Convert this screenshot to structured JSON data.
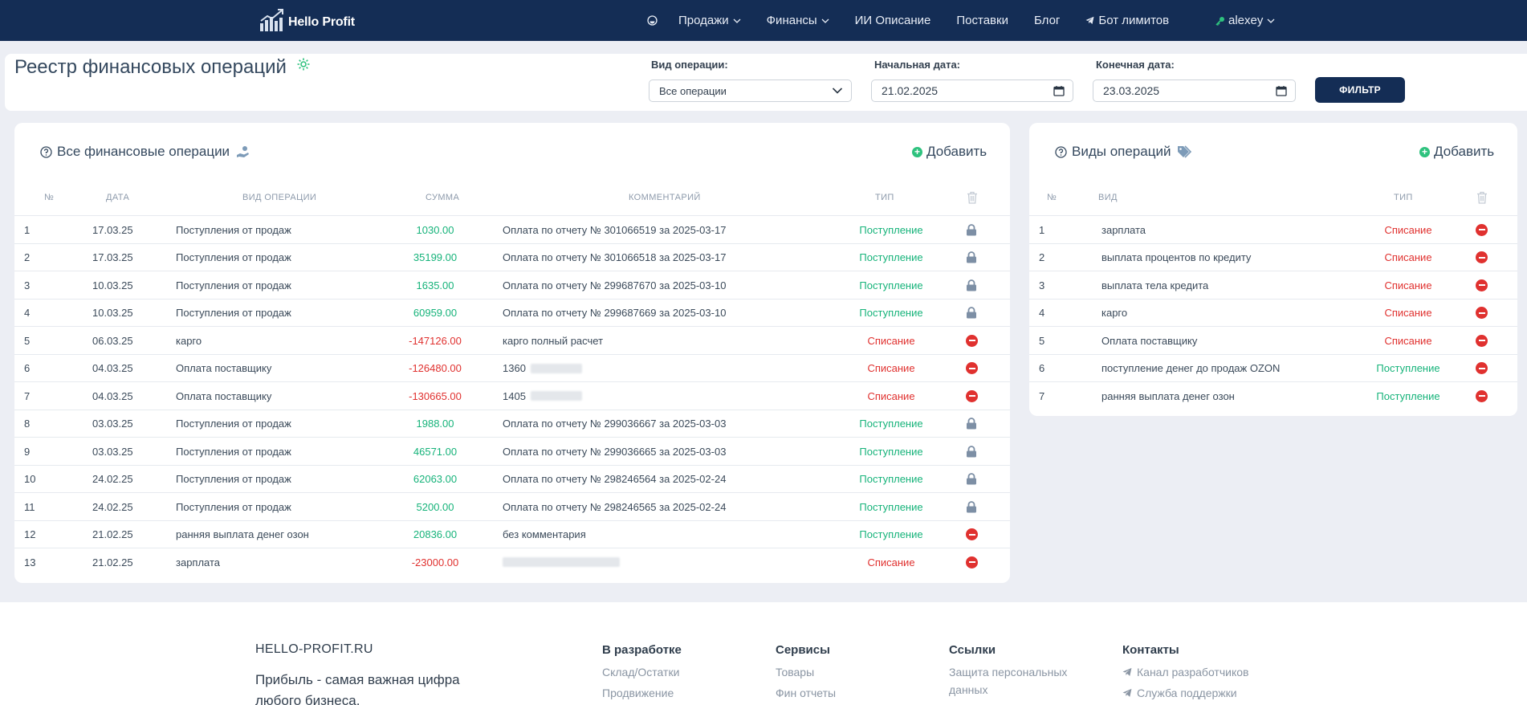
{
  "navbar": {
    "brand": "Hello Profit",
    "items": [
      {
        "label": "Продажи",
        "dropdown": true
      },
      {
        "label": "Финансы",
        "dropdown": true
      },
      {
        "label": "ИИ Описание",
        "dropdown": false
      },
      {
        "label": "Поставки",
        "dropdown": false
      },
      {
        "label": "Блог",
        "dropdown": false
      },
      {
        "label": "Бот лимитов",
        "dropdown": false
      }
    ],
    "user": "alexey"
  },
  "filter": {
    "title": "Реестр финансовых операций",
    "op_type_label": "Вид операции:",
    "op_type_value": "Все операции",
    "start_label": "Начальная дата:",
    "start_value": "21.02.2025",
    "end_label": "Конечная дата:",
    "end_value": "23.03.2025",
    "button": "ФИЛЬТР"
  },
  "operations": {
    "title": "Все финансовые операции",
    "add": "Добавить",
    "headers": {
      "num": "№",
      "date": "ДАТА",
      "kind": "ВИД ОПЕРАЦИИ",
      "sum": "СУММА",
      "comment": "КОММЕНТАРИЙ",
      "type": "ТИП"
    },
    "rows": [
      {
        "num": "1",
        "date": "17.03.25",
        "kind": "Поступления от продаж",
        "sum": "1030.00",
        "comment": "Оплата по отчету № 301066519 за 2025-03-17",
        "type": "Поступление",
        "locked": true
      },
      {
        "num": "2",
        "date": "17.03.25",
        "kind": "Поступления от продаж",
        "sum": "35199.00",
        "comment": "Оплата по отчету № 301066518 за 2025-03-17",
        "type": "Поступление",
        "locked": true
      },
      {
        "num": "3",
        "date": "10.03.25",
        "kind": "Поступления от продаж",
        "sum": "1635.00",
        "comment": "Оплата по отчету № 299687670 за 2025-03-10",
        "type": "Поступление",
        "locked": true
      },
      {
        "num": "4",
        "date": "10.03.25",
        "kind": "Поступления от продаж",
        "sum": "60959.00",
        "comment": "Оплата по отчету № 299687669 за 2025-03-10",
        "type": "Поступление",
        "locked": true
      },
      {
        "num": "5",
        "date": "06.03.25",
        "kind": "карго",
        "sum": "-147126.00",
        "comment": "карго полный расчет",
        "type": "Списание",
        "locked": false
      },
      {
        "num": "6",
        "date": "04.03.25",
        "kind": "Оплата поставщику",
        "sum": "-126480.00",
        "comment": "1360",
        "type": "Списание",
        "locked": false,
        "blur": 64
      },
      {
        "num": "7",
        "date": "04.03.25",
        "kind": "Оплата поставщику",
        "sum": "-130665.00",
        "comment": "1405",
        "type": "Списание",
        "locked": false,
        "blur": 64
      },
      {
        "num": "8",
        "date": "03.03.25",
        "kind": "Поступления от продаж",
        "sum": "1988.00",
        "comment": "Оплата по отчету № 299036667 за 2025-03-03",
        "type": "Поступление",
        "locked": true
      },
      {
        "num": "9",
        "date": "03.03.25",
        "kind": "Поступления от продаж",
        "sum": "46571.00",
        "comment": "Оплата по отчету № 299036665 за 2025-03-03",
        "type": "Поступление",
        "locked": true
      },
      {
        "num": "10",
        "date": "24.02.25",
        "kind": "Поступления от продаж",
        "sum": "62063.00",
        "comment": "Оплата по отчету № 298246564 за 2025-02-24",
        "type": "Поступление",
        "locked": true
      },
      {
        "num": "11",
        "date": "24.02.25",
        "kind": "Поступления от продаж",
        "sum": "5200.00",
        "comment": "Оплата по отчету № 298246565 за 2025-02-24",
        "type": "Поступление",
        "locked": true
      },
      {
        "num": "12",
        "date": "21.02.25",
        "kind": "ранняя выплата денег озон",
        "sum": "20836.00",
        "comment": "без комментария",
        "type": "Поступление",
        "locked": false
      },
      {
        "num": "13",
        "date": "21.02.25",
        "kind": "зарплата",
        "sum": "-23000.00",
        "comment": "",
        "type": "Списание",
        "locked": false,
        "blur": 146
      }
    ]
  },
  "kinds": {
    "title": "Виды операций",
    "add": "Добавить",
    "headers": {
      "num": "№",
      "kind": "ВИД",
      "type": "ТИП"
    },
    "rows": [
      {
        "num": "1",
        "kind": "зарплата",
        "type": "Списание"
      },
      {
        "num": "2",
        "kind": "выплата процентов по кредиту",
        "type": "Списание"
      },
      {
        "num": "3",
        "kind": "выплата тела кредита",
        "type": "Списание"
      },
      {
        "num": "4",
        "kind": "карго",
        "type": "Списание"
      },
      {
        "num": "5",
        "kind": "Оплата поставщику",
        "type": "Списание"
      },
      {
        "num": "6",
        "kind": "поступление денег до продаж OZON",
        "type": "Поступление"
      },
      {
        "num": "7",
        "kind": "ранняя выплата денег озон",
        "type": "Поступление"
      }
    ]
  },
  "footer": {
    "brand": "HELLO-PROFIT.RU",
    "slogan": "Прибыль - самая важная цифра любого бизнеса.",
    "columns": [
      {
        "title": "В разработке",
        "links": [
          "Склад/Остатки",
          "Продвижение"
        ]
      },
      {
        "title": "Сервисы",
        "links": [
          "Товары",
          "Фин отчеты"
        ]
      },
      {
        "title": "Ссылки",
        "links": [
          "Защита персональных",
          "данных"
        ]
      },
      {
        "title": "Контакты",
        "links": [
          "Канал разработчиков",
          "Служба поддержки"
        ]
      }
    ]
  },
  "colors": {
    "navbar": "#142d55",
    "positive": "#16b37a",
    "negative": "#e0312f",
    "add": "#2ec27e"
  }
}
